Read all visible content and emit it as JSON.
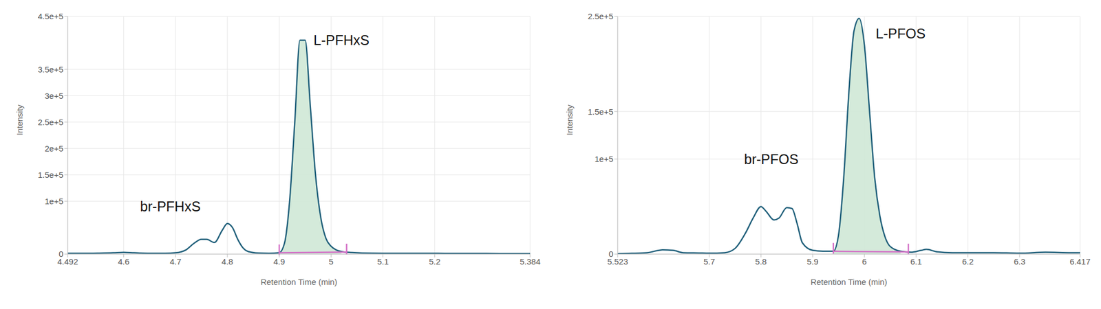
{
  "chart_data": [
    {
      "type": "line",
      "x_label": "Retention Time (min)",
      "y_label": "Intensity",
      "grid": true,
      "color": "#1f5f7a",
      "x": [
        4.492,
        4.52,
        4.55,
        4.58,
        4.6,
        4.62,
        4.65,
        4.68,
        4.7,
        4.72,
        4.735,
        4.75,
        4.76,
        4.775,
        4.79,
        4.8,
        4.81,
        4.82,
        4.83,
        4.84,
        4.86,
        4.88,
        4.9,
        4.91,
        4.92,
        4.93,
        4.94,
        4.95,
        4.96,
        4.97,
        4.98,
        4.99,
        5.0,
        5.01,
        5.02,
        5.04,
        5.06,
        5.1,
        5.15,
        5.2,
        5.25,
        5.3,
        5.35,
        5.384
      ],
      "values": [
        1500,
        1500,
        1800,
        2500,
        3500,
        2500,
        1500,
        1500,
        2500,
        8000,
        20000,
        28000,
        28000,
        22000,
        45000,
        58000,
        50000,
        28000,
        12000,
        5000,
        2000,
        1500,
        2500,
        20000,
        100000,
        250000,
        405000,
        405000,
        280000,
        150000,
        70000,
        30000,
        15000,
        8000,
        5000,
        3000,
        2000,
        1500,
        1500,
        1500,
        1200,
        1200,
        1000,
        1000
      ],
      "xlim": [
        4.492,
        5.384
      ],
      "xticks": [
        4.492,
        4.6,
        4.7,
        4.8,
        4.9,
        5,
        5.1,
        5.2,
        5.384
      ],
      "ylim": [
        0,
        450000
      ],
      "yticks": [
        0,
        {
          "value": 100000,
          "label": "1e+5"
        },
        {
          "value": 150000,
          "label": "1.5e+5"
        },
        {
          "value": 200000,
          "label": "2e+5"
        },
        {
          "value": 250000,
          "label": "2.5e+5"
        },
        {
          "value": 300000,
          "label": "3e+5"
        },
        {
          "value": 350000,
          "label": "3.5e+5"
        },
        {
          "value": 450000,
          "label": "4.5e+5"
        }
      ],
      "integration": [
        4.9,
        5.03
      ],
      "annotations": [
        {
          "text": "br-PFHxS",
          "x": 4.69,
          "y": 90000
        },
        {
          "text": "L-PFHxS",
          "x": 5.02,
          "y": 405000
        }
      ]
    },
    {
      "type": "line",
      "x_label": "Retention Time (min)",
      "y_label": "Intensity",
      "grid": true,
      "color": "#1f5f7a",
      "x": [
        5.523,
        5.55,
        5.58,
        5.61,
        5.63,
        5.65,
        5.68,
        5.7,
        5.73,
        5.75,
        5.77,
        5.785,
        5.8,
        5.81,
        5.825,
        5.835,
        5.85,
        5.86,
        5.87,
        5.88,
        5.9,
        5.92,
        5.94,
        5.95,
        5.96,
        5.97,
        5.98,
        5.99,
        6.0,
        6.01,
        6.02,
        6.03,
        6.04,
        6.05,
        6.07,
        6.09,
        6.11,
        6.12,
        6.14,
        6.17,
        6.2,
        6.25,
        6.3,
        6.35,
        6.4,
        6.417
      ],
      "values": [
        500,
        800,
        1500,
        4500,
        4000,
        1500,
        1200,
        1000,
        1500,
        6000,
        22000,
        38000,
        50000,
        45000,
        36000,
        38000,
        49000,
        48000,
        32000,
        12000,
        4000,
        3000,
        3000,
        20000,
        80000,
        170000,
        235000,
        248000,
        220000,
        150000,
        80000,
        40000,
        18000,
        8000,
        3000,
        2000,
        4000,
        5000,
        2500,
        1500,
        1500,
        1500,
        1000,
        2000,
        1500,
        1500
      ],
      "xlim": [
        5.523,
        6.417
      ],
      "xticks": [
        5.523,
        5.7,
        5.8,
        5.9,
        6,
        6.1,
        6.2,
        6.3,
        6.417
      ],
      "ylim": [
        0,
        250000
      ],
      "yticks": [
        0,
        {
          "value": 100000,
          "label": "1e+5"
        },
        {
          "value": 150000,
          "label": "1.5e+5"
        },
        {
          "value": 250000,
          "label": "2.5e+5"
        }
      ],
      "integration": [
        5.94,
        6.085
      ],
      "annotations": [
        {
          "text": "br-PFOS",
          "x": 5.82,
          "y": 100000
        },
        {
          "text": "L-PFOS",
          "x": 6.07,
          "y": 232000
        }
      ]
    }
  ]
}
